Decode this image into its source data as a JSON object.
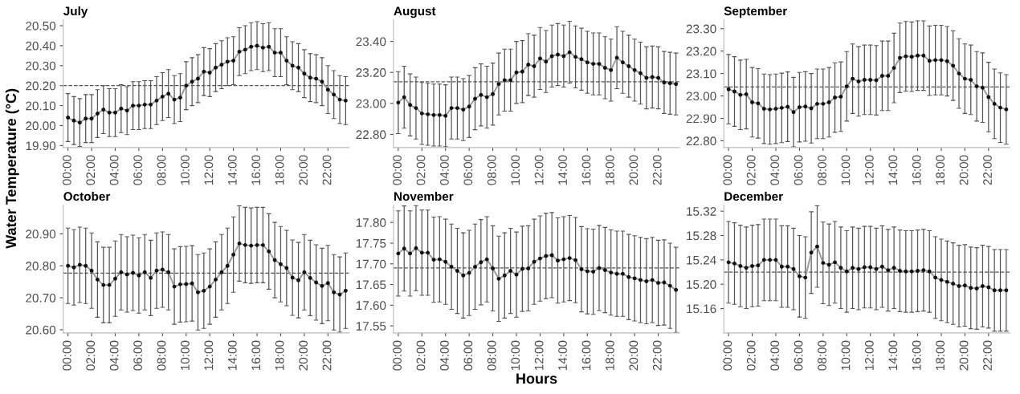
{
  "chart_data": [
    {
      "type": "line",
      "title": "July",
      "marker": "circle",
      "grid": false,
      "xlim": [
        -0.4,
        23.8
      ],
      "ylim": [
        19.89,
        20.53
      ],
      "yticks": [
        {
          "value": 19.9,
          "label": "19.90"
        },
        {
          "value": 20.0,
          "label": "20.00"
        },
        {
          "value": 20.1,
          "label": "20.10"
        },
        {
          "value": 20.2,
          "label": "20.20"
        },
        {
          "value": 20.3,
          "label": "20.30"
        },
        {
          "value": 20.4,
          "label": "20.40"
        },
        {
          "value": 20.5,
          "label": "20.50"
        }
      ],
      "xticks": [
        {
          "value": 0,
          "label": "00:00"
        },
        {
          "value": 2,
          "label": "02:00"
        },
        {
          "value": 4,
          "label": "04:00"
        },
        {
          "value": 6,
          "label": "06:00"
        },
        {
          "value": 8,
          "label": "08:00"
        },
        {
          "value": 10,
          "label": "10:00"
        },
        {
          "value": 12,
          "label": "12:00"
        },
        {
          "value": 14,
          "label": "14:00"
        },
        {
          "value": 16,
          "label": "16:00"
        },
        {
          "value": 18,
          "label": "18:00"
        },
        {
          "value": 20,
          "label": "20:00"
        },
        {
          "value": 22,
          "label": "22:00"
        }
      ],
      "x": [
        0,
        0.5,
        1,
        1.5,
        2,
        2.5,
        3,
        3.5,
        4,
        4.5,
        5,
        5.5,
        6,
        6.5,
        7,
        7.5,
        8,
        8.5,
        9,
        9.5,
        10,
        10.5,
        11,
        11.5,
        12,
        12.5,
        13,
        13.5,
        14,
        14.5,
        15,
        15.5,
        16,
        16.5,
        17,
        17.5,
        18,
        18.5,
        19,
        19.5,
        20,
        20.5,
        21,
        21.5,
        22,
        22.5,
        23,
        23.5
      ],
      "series": [
        {
          "color": "#999999",
          "values": [
            20.04,
            20.025,
            20.015,
            20.035,
            20.035,
            20.06,
            20.08,
            20.065,
            20.065,
            20.085,
            20.075,
            20.1,
            20.1,
            20.105,
            20.105,
            20.125,
            20.145,
            20.16,
            20.13,
            20.14,
            20.2,
            20.22,
            20.235,
            20.27,
            20.265,
            20.29,
            20.305,
            20.32,
            20.325,
            20.37,
            20.38,
            20.395,
            20.4,
            20.39,
            20.395,
            20.365,
            20.365,
            20.325,
            20.3,
            20.29,
            20.26,
            20.24,
            20.235,
            20.22,
            20.18,
            20.155,
            20.13,
            20.125
          ],
          "errors": [
            0.12,
            0.12,
            0.12,
            0.12,
            0.12,
            0.12,
            0.12,
            0.12,
            0.12,
            0.12,
            0.12,
            0.12,
            0.12,
            0.12,
            0.12,
            0.12,
            0.12,
            0.12,
            0.12,
            0.12,
            0.12,
            0.12,
            0.12,
            0.12,
            0.12,
            0.12,
            0.12,
            0.12,
            0.12,
            0.12,
            0.12,
            0.12,
            0.12,
            0.12,
            0.12,
            0.12,
            0.12,
            0.12,
            0.12,
            0.12,
            0.12,
            0.12,
            0.12,
            0.12,
            0.12,
            0.12,
            0.12,
            0.12
          ]
        }
      ],
      "ref_lines": [
        {
          "axis": "y",
          "value": 20.2,
          "line_style": "dashed",
          "color": "#555555"
        }
      ]
    },
    {
      "type": "line",
      "title": "August",
      "marker": "circle",
      "grid": false,
      "xlim": [
        -0.4,
        23.8
      ],
      "ylim": [
        22.715,
        23.54
      ],
      "yticks": [
        {
          "value": 22.8,
          "label": "22.80"
        },
        {
          "value": 23.0,
          "label": "23.00"
        },
        {
          "value": 23.2,
          "label": "23.20"
        },
        {
          "value": 23.4,
          "label": "23.40"
        }
      ],
      "xticks": [
        {
          "value": 0,
          "label": "00:00"
        },
        {
          "value": 2,
          "label": "02:00"
        },
        {
          "value": 4,
          "label": "04:00"
        },
        {
          "value": 6,
          "label": "06:00"
        },
        {
          "value": 8,
          "label": "08:00"
        },
        {
          "value": 10,
          "label": "10:00"
        },
        {
          "value": 12,
          "label": "12:00"
        },
        {
          "value": 14,
          "label": "14:00"
        },
        {
          "value": 16,
          "label": "16:00"
        },
        {
          "value": 18,
          "label": "18:00"
        },
        {
          "value": 20,
          "label": "20:00"
        },
        {
          "value": 22,
          "label": "22:00"
        }
      ],
      "x": [
        0,
        0.5,
        1,
        1.5,
        2,
        2.5,
        3,
        3.5,
        4,
        4.5,
        5,
        5.5,
        6,
        6.5,
        7,
        7.5,
        8,
        8.5,
        9,
        9.5,
        10,
        10.5,
        11,
        11.5,
        12,
        12.5,
        13,
        13.5,
        14,
        14.5,
        15,
        15.5,
        16,
        16.5,
        17,
        17.5,
        18,
        18.5,
        19,
        19.5,
        20,
        20.5,
        21,
        21.5,
        22,
        22.5,
        23,
        23.5
      ],
      "series": [
        {
          "color": "#999999",
          "values": [
            23.005,
            23.04,
            22.99,
            22.97,
            22.935,
            22.93,
            22.925,
            22.925,
            22.92,
            22.97,
            22.97,
            22.96,
            22.98,
            23.03,
            23.055,
            23.04,
            23.06,
            23.125,
            23.15,
            23.15,
            23.2,
            23.205,
            23.25,
            23.24,
            23.29,
            23.27,
            23.305,
            23.315,
            23.305,
            23.33,
            23.3,
            23.285,
            23.265,
            23.255,
            23.255,
            23.23,
            23.215,
            23.295,
            23.265,
            23.24,
            23.215,
            23.195,
            23.165,
            23.17,
            23.165,
            23.135,
            23.13,
            23.125
          ],
          "errors": [
            0.2,
            0.2,
            0.2,
            0.2,
            0.2,
            0.2,
            0.2,
            0.2,
            0.2,
            0.2,
            0.2,
            0.2,
            0.2,
            0.2,
            0.2,
            0.2,
            0.2,
            0.2,
            0.2,
            0.2,
            0.2,
            0.2,
            0.2,
            0.2,
            0.2,
            0.2,
            0.2,
            0.2,
            0.2,
            0.2,
            0.2,
            0.2,
            0.2,
            0.2,
            0.2,
            0.2,
            0.2,
            0.2,
            0.2,
            0.2,
            0.2,
            0.2,
            0.2,
            0.2,
            0.2,
            0.2,
            0.2,
            0.2
          ]
        }
      ],
      "ref_lines": [
        {
          "axis": "y",
          "value": 23.14,
          "line_style": "dashed",
          "color": "#555555"
        }
      ]
    },
    {
      "type": "line",
      "title": "September",
      "marker": "circle",
      "grid": false,
      "xlim": [
        -0.4,
        23.8
      ],
      "ylim": [
        22.77,
        23.34
      ],
      "yticks": [
        {
          "value": 22.8,
          "label": "22.80"
        },
        {
          "value": 22.9,
          "label": "22.90"
        },
        {
          "value": 23.0,
          "label": "23.00"
        },
        {
          "value": 23.1,
          "label": "23.10"
        },
        {
          "value": 23.2,
          "label": "23.20"
        },
        {
          "value": 23.3,
          "label": "23.30"
        }
      ],
      "xticks": [
        {
          "value": 0,
          "label": "00:00"
        },
        {
          "value": 2,
          "label": "02:00"
        },
        {
          "value": 4,
          "label": "04:00"
        },
        {
          "value": 6,
          "label": "06:00"
        },
        {
          "value": 8,
          "label": "08:00"
        },
        {
          "value": 10,
          "label": "10:00"
        },
        {
          "value": 12,
          "label": "12:00"
        },
        {
          "value": 14,
          "label": "14:00"
        },
        {
          "value": 16,
          "label": "16:00"
        },
        {
          "value": 18,
          "label": "18:00"
        },
        {
          "value": 20,
          "label": "20:00"
        },
        {
          "value": 22,
          "label": "22:00"
        }
      ],
      "x": [
        0,
        0.5,
        1,
        1.5,
        2,
        2.5,
        3,
        3.5,
        4,
        4.5,
        5,
        5.5,
        6,
        6.5,
        7,
        7.5,
        8,
        8.5,
        9,
        9.5,
        10,
        10.5,
        11,
        11.5,
        12,
        12.5,
        13,
        13.5,
        14,
        14.5,
        15,
        15.5,
        16,
        16.5,
        17,
        17.5,
        18,
        18.5,
        19,
        19.5,
        20,
        20.5,
        21,
        21.5,
        22,
        22.5,
        23,
        23.5
      ],
      "series": [
        {
          "color": "#999999",
          "values": [
            23.03,
            23.02,
            23.005,
            23.008,
            22.972,
            22.967,
            22.943,
            22.94,
            22.943,
            22.947,
            22.952,
            22.928,
            22.95,
            22.953,
            22.945,
            22.965,
            22.965,
            22.972,
            22.993,
            22.997,
            23.043,
            23.077,
            23.065,
            23.072,
            23.072,
            23.07,
            23.09,
            23.09,
            23.125,
            23.17,
            23.177,
            23.175,
            23.18,
            23.18,
            23.157,
            23.16,
            23.16,
            23.155,
            23.135,
            23.1,
            23.077,
            23.072,
            23.043,
            23.037,
            22.995,
            22.965,
            22.948,
            22.94
          ],
          "errors": [
            0.155,
            0.155,
            0.155,
            0.155,
            0.155,
            0.155,
            0.155,
            0.155,
            0.155,
            0.155,
            0.155,
            0.155,
            0.155,
            0.155,
            0.155,
            0.155,
            0.155,
            0.155,
            0.155,
            0.155,
            0.155,
            0.155,
            0.155,
            0.155,
            0.155,
            0.155,
            0.155,
            0.155,
            0.155,
            0.155,
            0.155,
            0.155,
            0.155,
            0.155,
            0.155,
            0.155,
            0.155,
            0.155,
            0.155,
            0.155,
            0.155,
            0.155,
            0.155,
            0.155,
            0.155,
            0.155,
            0.155,
            0.155
          ]
        }
      ],
      "ref_lines": [
        {
          "axis": "y",
          "value": 23.04,
          "line_style": "dashed",
          "color": "#555555"
        }
      ]
    },
    {
      "type": "line",
      "title": "October",
      "ylabel": "Water Temperature (°C)",
      "marker": "circle",
      "grid": false,
      "xlim": [
        -0.4,
        23.8
      ],
      "ylim": [
        20.59,
        20.99
      ],
      "yticks": [
        {
          "value": 20.6,
          "label": "20.60"
        },
        {
          "value": 20.7,
          "label": "20.70"
        },
        {
          "value": 20.8,
          "label": "20.80"
        },
        {
          "value": 20.9,
          "label": "20.90"
        }
      ],
      "xticks": [
        {
          "value": 0,
          "label": "00:00"
        },
        {
          "value": 2,
          "label": "02:00"
        },
        {
          "value": 4,
          "label": "04:00"
        },
        {
          "value": 6,
          "label": "06:00"
        },
        {
          "value": 8,
          "label": "08:00"
        },
        {
          "value": 10,
          "label": "10:00"
        },
        {
          "value": 12,
          "label": "12:00"
        },
        {
          "value": 14,
          "label": "14:00"
        },
        {
          "value": 16,
          "label": "16:00"
        },
        {
          "value": 18,
          "label": "18:00"
        },
        {
          "value": 20,
          "label": "20:00"
        },
        {
          "value": 22,
          "label": "22:00"
        }
      ],
      "x": [
        0,
        0.5,
        1,
        1.5,
        2,
        2.5,
        3,
        3.5,
        4,
        4.5,
        5,
        5.5,
        6,
        6.5,
        7,
        7.5,
        8,
        8.5,
        9,
        9.5,
        10,
        10.5,
        11,
        11.5,
        12,
        12.5,
        13,
        13.5,
        14,
        14.5,
        15,
        15.5,
        16,
        16.5,
        17,
        17.5,
        18,
        18.5,
        19,
        19.5,
        20,
        20.5,
        21,
        21.5,
        22,
        22.5,
        23,
        23.5
      ],
      "series": [
        {
          "color": "#999999",
          "values": [
            20.8,
            20.795,
            20.803,
            20.8,
            20.785,
            20.757,
            20.74,
            20.74,
            20.76,
            20.78,
            20.773,
            20.778,
            20.77,
            20.78,
            20.762,
            20.785,
            20.788,
            20.78,
            20.735,
            20.742,
            20.743,
            20.745,
            20.717,
            20.722,
            20.735,
            20.757,
            20.78,
            20.8,
            20.835,
            20.87,
            20.865,
            20.863,
            20.865,
            20.865,
            20.845,
            20.818,
            20.805,
            20.793,
            20.763,
            20.755,
            20.78,
            20.762,
            20.748,
            20.737,
            20.746,
            20.717,
            20.71,
            20.722
          ],
          "errors": [
            0.118,
            0.118,
            0.118,
            0.118,
            0.118,
            0.118,
            0.118,
            0.118,
            0.118,
            0.118,
            0.118,
            0.118,
            0.118,
            0.118,
            0.118,
            0.118,
            0.118,
            0.118,
            0.118,
            0.118,
            0.118,
            0.118,
            0.118,
            0.118,
            0.118,
            0.118,
            0.118,
            0.118,
            0.118,
            0.118,
            0.118,
            0.118,
            0.118,
            0.118,
            0.118,
            0.118,
            0.118,
            0.118,
            0.118,
            0.118,
            0.118,
            0.118,
            0.118,
            0.118,
            0.118,
            0.118,
            0.118,
            0.118
          ]
        }
      ],
      "ref_lines": [
        {
          "axis": "y",
          "value": 20.777,
          "line_style": "dashed",
          "color": "#555555"
        }
      ]
    },
    {
      "type": "line",
      "title": "November",
      "xlabel": "Hours",
      "marker": "circle",
      "grid": false,
      "xlim": [
        -0.4,
        23.8
      ],
      "ylim": [
        17.533,
        17.842
      ],
      "yticks": [
        {
          "value": 17.55,
          "label": "17.55"
        },
        {
          "value": 17.6,
          "label": "17.60"
        },
        {
          "value": 17.65,
          "label": "17.65"
        },
        {
          "value": 17.7,
          "label": "17.70"
        },
        {
          "value": 17.75,
          "label": "17.75"
        },
        {
          "value": 17.8,
          "label": "17.80"
        }
      ],
      "xticks": [
        {
          "value": 0,
          "label": "00:00"
        },
        {
          "value": 2,
          "label": "02:00"
        },
        {
          "value": 4,
          "label": "04:00"
        },
        {
          "value": 6,
          "label": "06:00"
        },
        {
          "value": 8,
          "label": "08:00"
        },
        {
          "value": 10,
          "label": "10:00"
        },
        {
          "value": 12,
          "label": "12:00"
        },
        {
          "value": 14,
          "label": "14:00"
        },
        {
          "value": 16,
          "label": "16:00"
        },
        {
          "value": 18,
          "label": "18:00"
        },
        {
          "value": 20,
          "label": "20:00"
        },
        {
          "value": 22,
          "label": "22:00"
        }
      ],
      "x": [
        0,
        0.5,
        1,
        1.5,
        2,
        2.5,
        3,
        3.5,
        4,
        4.5,
        5,
        5.5,
        6,
        6.5,
        7,
        7.5,
        8,
        8.5,
        9,
        9.5,
        10,
        10.5,
        11,
        11.5,
        12,
        12.5,
        13,
        13.5,
        14,
        14.5,
        15,
        15.5,
        16,
        16.5,
        17,
        17.5,
        18,
        18.5,
        19,
        19.5,
        20,
        20.5,
        21,
        21.5,
        22,
        22.5,
        23,
        23.5
      ],
      "series": [
        {
          "color": "#999999",
          "values": [
            17.725,
            17.737,
            17.725,
            17.738,
            17.727,
            17.727,
            17.71,
            17.711,
            17.705,
            17.693,
            17.683,
            17.672,
            17.678,
            17.693,
            17.704,
            17.711,
            17.689,
            17.664,
            17.672,
            17.683,
            17.674,
            17.688,
            17.689,
            17.705,
            17.713,
            17.719,
            17.721,
            17.708,
            17.711,
            17.714,
            17.709,
            17.687,
            17.682,
            17.681,
            17.69,
            17.685,
            17.679,
            17.676,
            17.676,
            17.668,
            17.665,
            17.661,
            17.658,
            17.661,
            17.654,
            17.655,
            17.647,
            17.637
          ],
          "errors": [
            0.103,
            0.103,
            0.103,
            0.103,
            0.103,
            0.103,
            0.103,
            0.103,
            0.103,
            0.103,
            0.103,
            0.103,
            0.103,
            0.103,
            0.103,
            0.103,
            0.103,
            0.103,
            0.103,
            0.103,
            0.103,
            0.103,
            0.103,
            0.103,
            0.103,
            0.103,
            0.103,
            0.103,
            0.103,
            0.103,
            0.103,
            0.103,
            0.103,
            0.103,
            0.103,
            0.103,
            0.103,
            0.103,
            0.103,
            0.103,
            0.103,
            0.103,
            0.103,
            0.103,
            0.103,
            0.103,
            0.103,
            0.103
          ]
        }
      ],
      "ref_lines": [
        {
          "axis": "y",
          "value": 17.69,
          "line_style": "dashed",
          "color": "#555555"
        }
      ]
    },
    {
      "type": "line",
      "title": "December",
      "marker": "circle",
      "grid": false,
      "xlim": [
        -0.4,
        23.8
      ],
      "ylim": [
        15.12,
        15.33
      ],
      "yticks": [
        {
          "value": 15.16,
          "label": "15.16"
        },
        {
          "value": 15.2,
          "label": "15.20"
        },
        {
          "value": 15.24,
          "label": "15.24"
        },
        {
          "value": 15.28,
          "label": "15.28"
        },
        {
          "value": 15.32,
          "label": "15.32"
        }
      ],
      "xticks": [
        {
          "value": 0,
          "label": "00:00"
        },
        {
          "value": 2,
          "label": "02:00"
        },
        {
          "value": 4,
          "label": "04:00"
        },
        {
          "value": 6,
          "label": "06:00"
        },
        {
          "value": 8,
          "label": "08:00"
        },
        {
          "value": 10,
          "label": "10:00"
        },
        {
          "value": 12,
          "label": "12:00"
        },
        {
          "value": 14,
          "label": "14:00"
        },
        {
          "value": 16,
          "label": "16:00"
        },
        {
          "value": 18,
          "label": "18:00"
        },
        {
          "value": 20,
          "label": "20:00"
        },
        {
          "value": 22,
          "label": "22:00"
        }
      ],
      "x": [
        0,
        0.5,
        1,
        1.5,
        2,
        2.5,
        3,
        3.5,
        4,
        4.5,
        5,
        5.5,
        6,
        6.5,
        7,
        7.5,
        8,
        8.5,
        9,
        9.5,
        10,
        10.5,
        11,
        11.5,
        12,
        12.5,
        13,
        13.5,
        14,
        14.5,
        15,
        15.5,
        16,
        16.5,
        17,
        17.5,
        18,
        18.5,
        19,
        19.5,
        20,
        20.5,
        21,
        21.5,
        22,
        22.5,
        23,
        23.5
      ],
      "series": [
        {
          "color": "#999999",
          "values": [
            15.236,
            15.234,
            15.23,
            15.227,
            15.23,
            15.231,
            15.24,
            15.24,
            15.24,
            15.229,
            15.229,
            15.225,
            15.213,
            15.211,
            15.252,
            15.262,
            15.235,
            15.232,
            15.236,
            15.227,
            15.221,
            15.227,
            15.225,
            15.228,
            15.228,
            15.225,
            15.229,
            15.223,
            15.227,
            15.222,
            15.221,
            15.221,
            15.222,
            15.223,
            15.221,
            15.211,
            15.207,
            15.204,
            15.201,
            15.197,
            15.198,
            15.194,
            15.193,
            15.197,
            15.195,
            15.19,
            15.19,
            15.19
          ],
          "errors": [
            0.067,
            0.067,
            0.067,
            0.067,
            0.067,
            0.067,
            0.067,
            0.067,
            0.067,
            0.067,
            0.067,
            0.067,
            0.067,
            0.067,
            0.067,
            0.067,
            0.067,
            0.067,
            0.067,
            0.067,
            0.067,
            0.067,
            0.067,
            0.067,
            0.067,
            0.067,
            0.067,
            0.067,
            0.067,
            0.067,
            0.067,
            0.067,
            0.067,
            0.067,
            0.067,
            0.067,
            0.067,
            0.067,
            0.067,
            0.067,
            0.067,
            0.067,
            0.067,
            0.067,
            0.067,
            0.067,
            0.067,
            0.067
          ]
        }
      ],
      "ref_lines": [
        {
          "axis": "y",
          "value": 15.22,
          "line_style": "dashed",
          "color": "#555555"
        }
      ]
    }
  ]
}
